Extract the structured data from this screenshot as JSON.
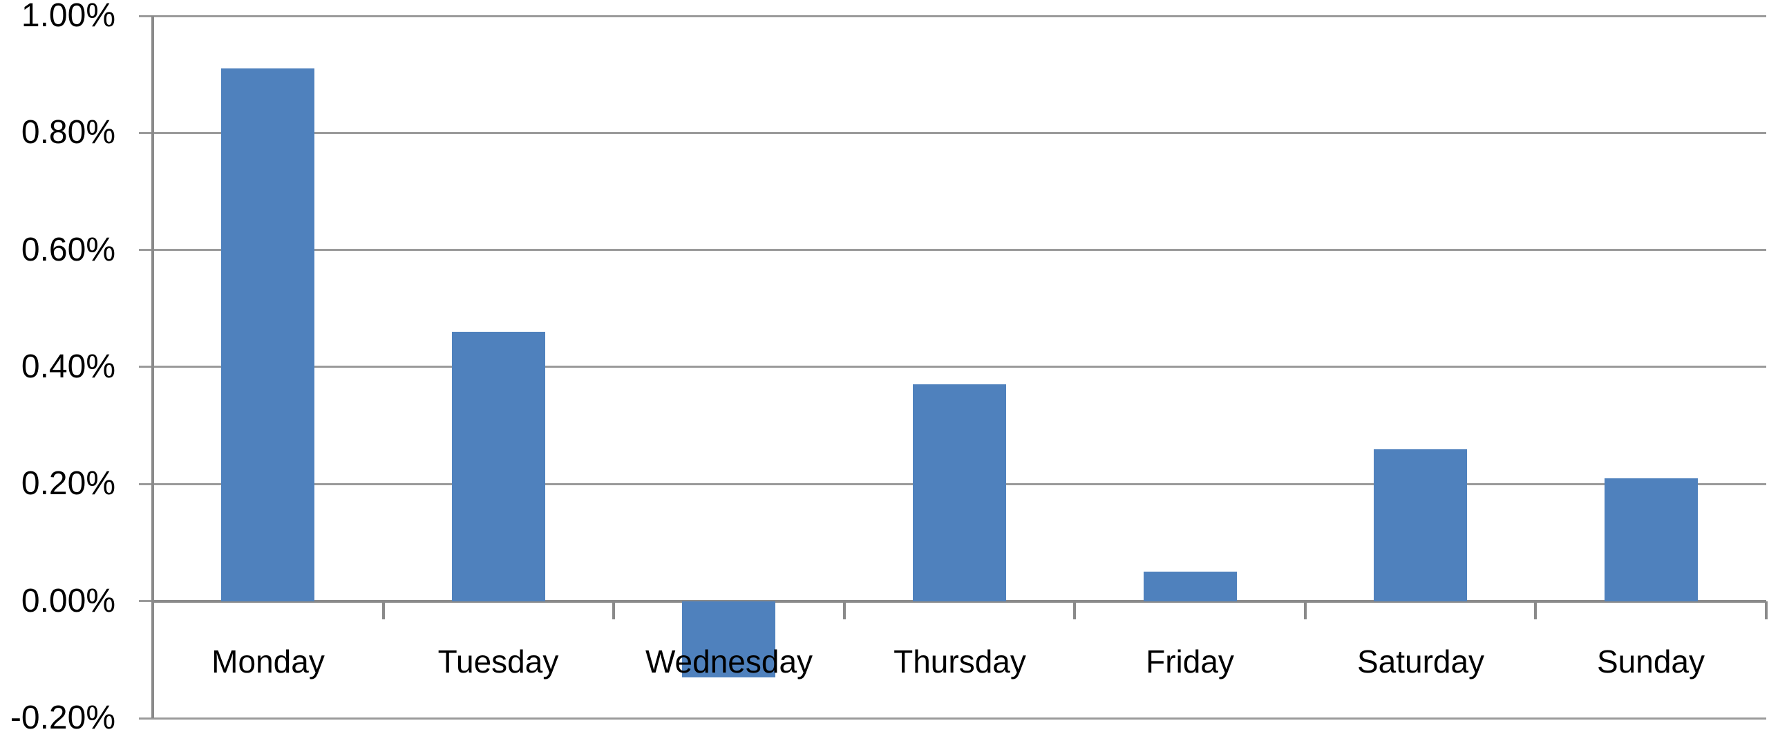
{
  "chart_data": {
    "type": "bar",
    "title": "",
    "xlabel": "",
    "ylabel": "",
    "categories": [
      "Monday",
      "Tuesday",
      "Wednesday",
      "Thursday",
      "Friday",
      "Saturday",
      "Sunday"
    ],
    "values": [
      0.91,
      0.46,
      -0.13,
      0.37,
      0.05,
      0.26,
      0.21
    ],
    "value_unit": "%",
    "ylim": [
      -0.2,
      1.0
    ],
    "yticks": [
      1.0,
      0.8,
      0.6,
      0.4,
      0.2,
      0.0,
      -0.2
    ],
    "ytick_labels": [
      "1.00%",
      "0.80%",
      "0.60%",
      "0.40%",
      "0.20%",
      "0.00%",
      "-0.20%"
    ],
    "grid": true,
    "legend": "none",
    "colors": {
      "bar": "#4F81BD",
      "gridline": "#9A9A9A",
      "axis": "#8A8A8A",
      "text": "#000000",
      "background": "#FFFFFF"
    }
  }
}
